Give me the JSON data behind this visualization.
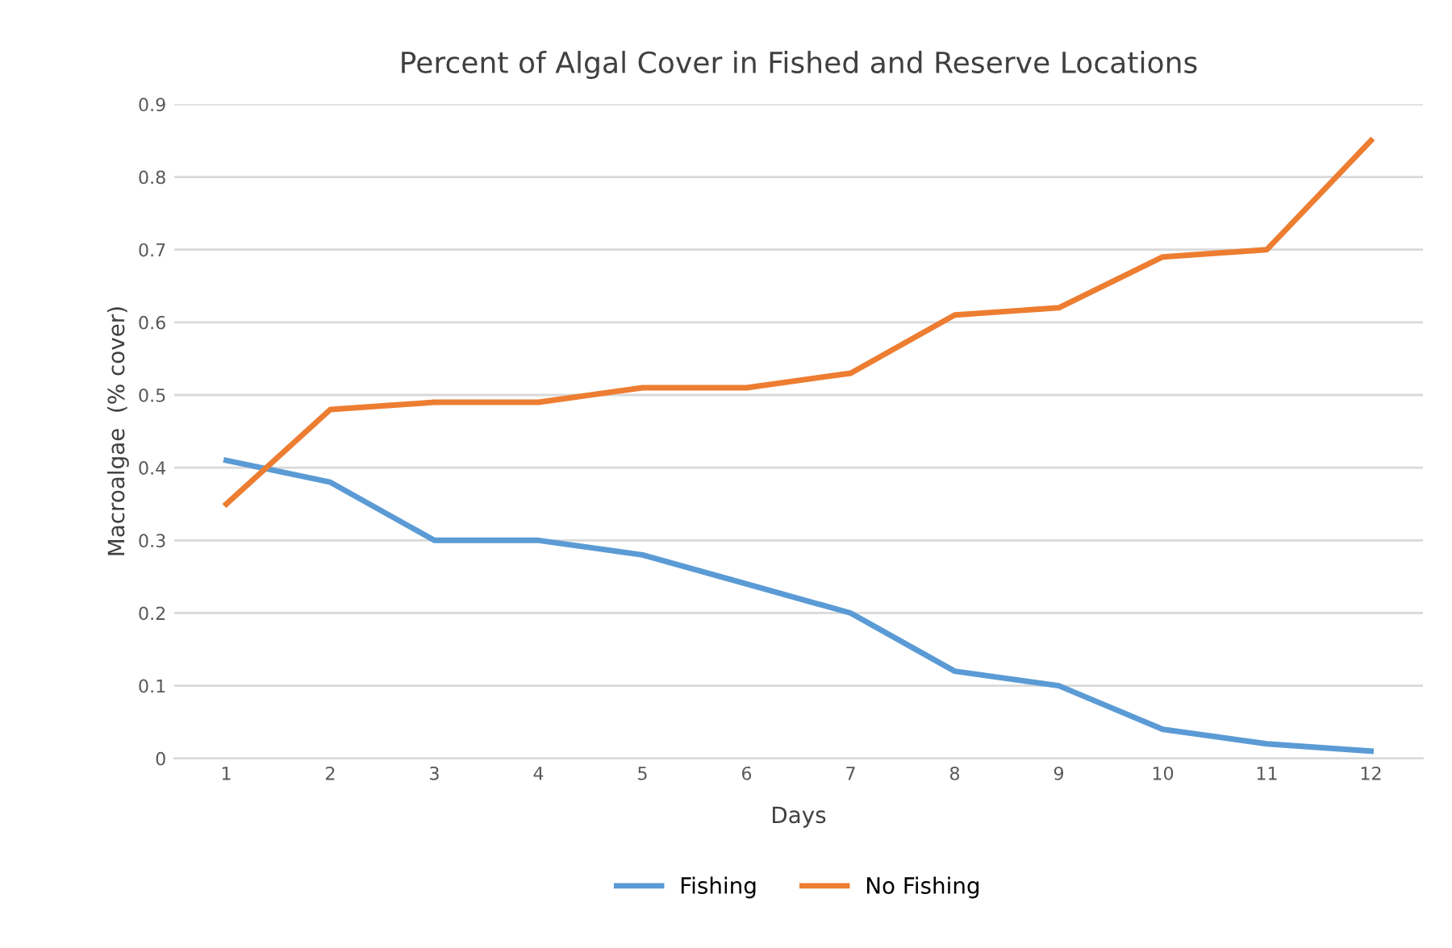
{
  "chart_data": {
    "type": "line",
    "title": "Percent of Algal Cover in Fished and Reserve Locations",
    "xlabel": "Days",
    "ylabel": "Macroalgae  (% cover)",
    "categories": [
      "1",
      "2",
      "3",
      "4",
      "5",
      "6",
      "7",
      "8",
      "9",
      "10",
      "11",
      "12"
    ],
    "series": [
      {
        "name": "Fishing",
        "color": "#5b9bd5",
        "values": [
          0.41,
          0.38,
          0.3,
          0.3,
          0.28,
          0.24,
          0.2,
          0.12,
          0.1,
          0.04,
          0.02,
          0.01
        ]
      },
      {
        "name": "No Fishing",
        "color": "#ed7d31",
        "values": [
          0.35,
          0.48,
          0.49,
          0.49,
          0.51,
          0.51,
          0.53,
          0.61,
          0.62,
          0.69,
          0.7,
          0.85
        ]
      }
    ],
    "ylim": [
      0,
      0.9
    ],
    "yticks": [
      0,
      0.1,
      0.2,
      0.3,
      0.4,
      0.5,
      0.6,
      0.7,
      0.8,
      0.9
    ],
    "grid": "y",
    "legend": "bottom",
    "marker": "none",
    "line_style": "solid"
  }
}
